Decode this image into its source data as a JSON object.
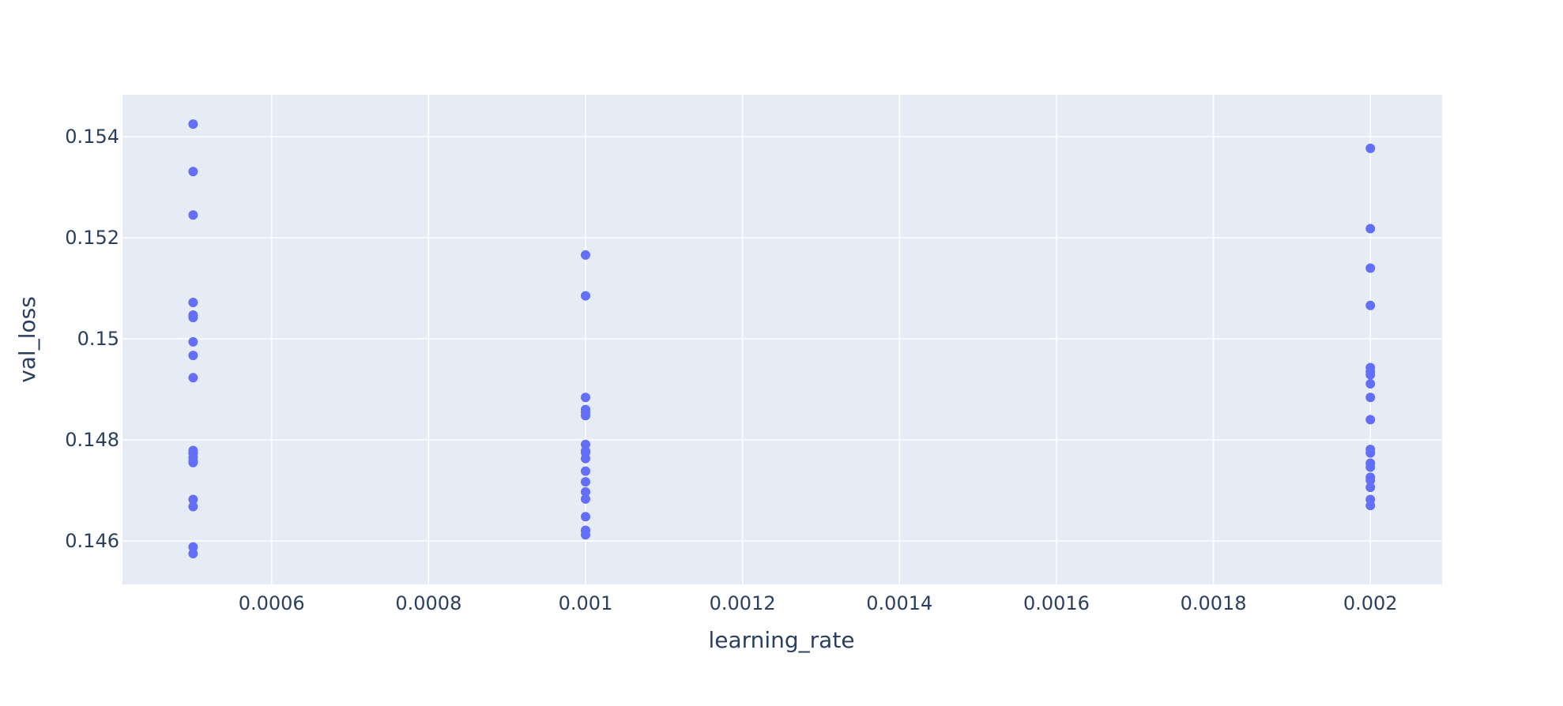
{
  "chart_data": {
    "type": "scatter",
    "title": "",
    "xlabel": "learning_rate",
    "ylabel": "val_loss",
    "xlim": [
      0.00041,
      0.0020914
    ],
    "ylim": [
      0.14514,
      0.15483
    ],
    "x_ticks": [
      0.0006,
      0.0008,
      0.001,
      0.0012,
      0.0014,
      0.0016,
      0.0018,
      0.002
    ],
    "x_tick_labels": [
      "0.0006",
      "0.0008",
      "0.001",
      "0.0012",
      "0.0014",
      "0.0016",
      "0.0018",
      "0.002"
    ],
    "y_ticks": [
      0.146,
      0.148,
      0.15,
      0.152,
      0.154
    ],
    "y_tick_labels": [
      "0.146",
      "0.148",
      "0.15",
      "0.152",
      "0.154"
    ],
    "grid": true,
    "legend": "none",
    "colors": {
      "plot_background": "#E5ECF6",
      "grid": "#ffffff",
      "marker": "#636EFA",
      "text": "#2a3f5f"
    },
    "series": [
      {
        "x": [
          0.0005,
          0.0005,
          0.0005,
          0.0005,
          0.0005,
          0.0005,
          0.0005,
          0.0005,
          0.0005,
          0.0005,
          0.0005,
          0.0005,
          0.0005,
          0.0005,
          0.0005,
          0.0005,
          0.0005,
          0.0005,
          0.0005,
          0.001,
          0.001,
          0.001,
          0.001,
          0.001,
          0.001,
          0.001,
          0.001,
          0.001,
          0.001,
          0.001,
          0.001,
          0.001,
          0.001,
          0.001,
          0.001,
          0.001,
          0.001,
          0.002,
          0.002,
          0.002,
          0.002,
          0.002,
          0.002,
          0.002,
          0.002,
          0.002,
          0.002,
          0.002,
          0.002,
          0.002,
          0.002,
          0.002,
          0.002,
          0.002,
          0.002,
          0.002
        ],
        "y": [
          0.15425,
          0.15331,
          0.15245,
          0.15072,
          0.15047,
          0.15042,
          0.14994,
          0.14967,
          0.14923,
          0.14779,
          0.14773,
          0.14765,
          0.14755,
          0.14682,
          0.14668,
          0.14588,
          0.14575,
          0.14775,
          0.14758,
          0.15166,
          0.15085,
          0.14884,
          0.1486,
          0.14855,
          0.14848,
          0.14791,
          0.14778,
          0.14763,
          0.14738,
          0.14717,
          0.14697,
          0.14683,
          0.14648,
          0.14621,
          0.14612,
          0.14775,
          0.1462,
          0.15377,
          0.15218,
          0.1514,
          0.15066,
          0.14943,
          0.14935,
          0.14929,
          0.14911,
          0.14884,
          0.1484,
          0.14781,
          0.14774,
          0.14746,
          0.14726,
          0.14706,
          0.14682,
          0.1467,
          0.14754,
          0.1472
        ]
      }
    ]
  }
}
